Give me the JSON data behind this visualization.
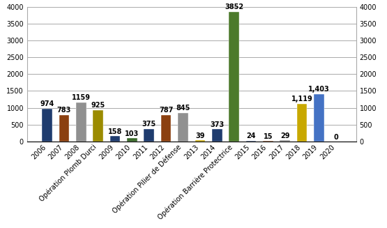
{
  "years": [
    "2006",
    "2007",
    "2008",
    "Opération Plomb Durci",
    "2009",
    "2010",
    "2011",
    "2012",
    "Opération Pilier de Défense",
    "2013",
    "2014",
    "Opération Barrière Protectrice",
    "2015",
    "2016",
    "2017",
    "2018",
    "2019",
    "2020"
  ],
  "values": [
    974,
    783,
    1159,
    925,
    158,
    103,
    375,
    787,
    845,
    39,
    373,
    3852,
    24,
    15,
    29,
    1119,
    1403,
    0
  ],
  "value_labels": [
    "974",
    "783",
    "1159",
    "925",
    "158",
    "103",
    "375",
    "787",
    "845",
    "39",
    "373",
    "3852",
    "24",
    "15",
    "29",
    "1,119",
    "1,403",
    "0"
  ],
  "colors": [
    "#1F3C6E",
    "#8B4010",
    "#909090",
    "#9B8B00",
    "#1F3C6E",
    "#3A6B2A",
    "#1F3C6E",
    "#8B4010",
    "#909090",
    "#C8A800",
    "#1F3C6E",
    "#4C7A2B",
    "#1F3C6E",
    "#8B4010",
    "#909090",
    "#C8A800",
    "#4472C4",
    "#4C7A2B"
  ],
  "ylim": [
    0,
    4000
  ],
  "yticks": [
    0,
    500,
    1000,
    1500,
    2000,
    2500,
    3000,
    3500,
    4000
  ],
  "background_color": "#FFFFFF",
  "grid_color": "#AAAAAA",
  "label_fontsize": 7,
  "value_fontsize": 7,
  "bar_width": 0.6
}
